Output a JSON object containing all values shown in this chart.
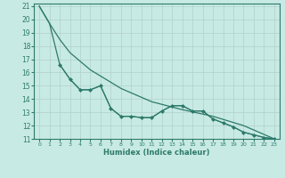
{
  "xlabel": "Humidex (Indice chaleur)",
  "background_color": "#c8eae4",
  "grid_color": "#b0d0cc",
  "line_color": "#2d7a6a",
  "xlim": [
    -0.5,
    23.5
  ],
  "ylim": [
    11,
    21.2
  ],
  "yticks": [
    11,
    12,
    13,
    14,
    15,
    16,
    17,
    18,
    19,
    20,
    21
  ],
  "xticks": [
    0,
    1,
    2,
    3,
    4,
    5,
    6,
    7,
    8,
    9,
    10,
    11,
    12,
    13,
    14,
    15,
    16,
    17,
    18,
    19,
    20,
    21,
    22,
    23
  ],
  "smooth_curve": {
    "x": [
      0,
      1,
      2,
      3,
      4,
      5,
      6,
      7,
      8,
      9,
      10,
      11,
      12,
      13,
      14,
      15,
      16,
      17,
      18,
      19,
      20,
      21,
      22,
      23
    ],
    "y": [
      21.0,
      19.7,
      16.6,
      15.5,
      14.7,
      14.7,
      15.0,
      13.3,
      12.7,
      12.7,
      12.6,
      12.6,
      13.1,
      13.5,
      13.5,
      13.1,
      13.1,
      12.5,
      12.2,
      11.9,
      11.5,
      11.3,
      11.1,
      11.0
    ]
  },
  "jagged_curve": {
    "x": [
      2,
      3,
      4,
      5,
      6,
      7,
      8,
      9,
      10,
      11,
      12,
      13,
      14,
      15,
      16,
      17,
      18,
      19,
      20,
      21,
      22,
      23
    ],
    "y": [
      16.6,
      15.5,
      14.7,
      14.7,
      15.0,
      13.3,
      12.7,
      12.7,
      12.6,
      12.6,
      13.1,
      13.5,
      13.5,
      13.1,
      13.1,
      12.5,
      12.2,
      11.9,
      11.5,
      11.3,
      11.1,
      11.0
    ]
  },
  "envelope_curve": {
    "x": [
      0,
      1,
      2,
      3,
      5,
      8,
      11,
      14,
      17,
      20,
      23
    ],
    "y": [
      21.0,
      19.7,
      18.5,
      17.5,
      16.2,
      14.8,
      13.8,
      13.2,
      12.7,
      12.0,
      11.0
    ]
  }
}
